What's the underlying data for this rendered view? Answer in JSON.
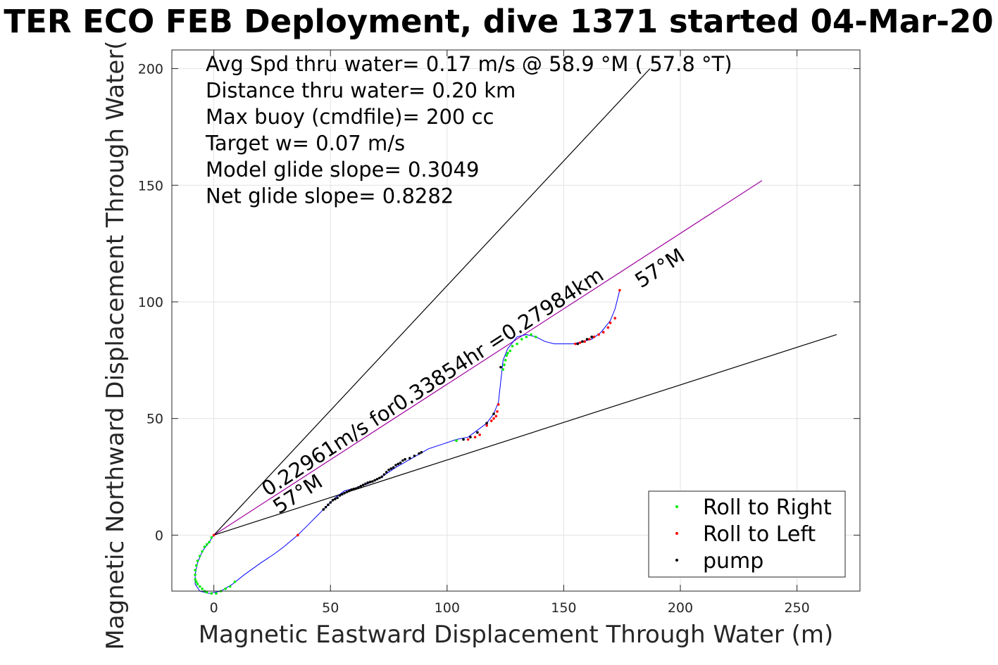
{
  "chart_data": {
    "type": "scatter",
    "title": "TER ECO FEB Deployment, dive 1371 started 04-Mar-20",
    "xlabel": "Magnetic Eastward Displacement Through Water (m)",
    "ylabel": "Magnetic Northward Displacement Through Water(",
    "xlim": [
      -18,
      277
    ],
    "ylim": [
      -24,
      208
    ],
    "xticks": [
      0,
      50,
      100,
      150,
      200,
      250
    ],
    "yticks": [
      0,
      50,
      100,
      150,
      200
    ],
    "grid": true,
    "legend_position": "bottom-right",
    "info_lines": [
      "Avg Spd thru water=  0.17 m/s @  58.9 °M ( 57.8 °T)",
      "Distance thru water=  0.20 km",
      "Max buoy (cmdfile)= 200 cc",
      "Target w= 0.07 m/s",
      "Model glide slope= 0.3049",
      "Net glide slope= 0.8282"
    ],
    "annotations": {
      "segment_label": "0.22961m/s for0.33854hr =0.27984km",
      "heading_label_upper": "57°M",
      "heading_label_lower": "57°M"
    },
    "reference_lines": [
      {
        "name": "upper bound",
        "x": [
          0,
          187
        ],
        "y": [
          0,
          200
        ],
        "color": "#000000"
      },
      {
        "name": "heading line",
        "x": [
          0,
          235
        ],
        "y": [
          0,
          152
        ],
        "color": "#a000a0"
      },
      {
        "name": "lower bound",
        "x": [
          0,
          267
        ],
        "y": [
          0,
          86
        ],
        "color": "#000000"
      }
    ],
    "track": {
      "color": "#0000ff",
      "x": [
        0,
        -2,
        -5,
        -7,
        -8,
        -8,
        -6,
        -2,
        3,
        8,
        13,
        20,
        26,
        30,
        36,
        40,
        44,
        48,
        52,
        56,
        60,
        66,
        72,
        78,
        85,
        92,
        98,
        104,
        109,
        113,
        117,
        120,
        122,
        123,
        124,
        126,
        130,
        134,
        138,
        142,
        146,
        150,
        154,
        158,
        162,
        166,
        170,
        172,
        174
      ],
      "y": [
        0,
        -3,
        -7,
        -12,
        -17,
        -21,
        -24,
        -25,
        -24,
        -21,
        -17,
        -12,
        -8,
        -5,
        0,
        4,
        8,
        12,
        16,
        19,
        20,
        22,
        25,
        29,
        33,
        37,
        39,
        41,
        42,
        45,
        48,
        52,
        57,
        66,
        75,
        80,
        85,
        86,
        85,
        83,
        82,
        82,
        82,
        83,
        84,
        87,
        92,
        97,
        105
      ]
    },
    "series": [
      {
        "name": "Roll to Right",
        "color": "#00ee00",
        "x": [
          -1,
          -2,
          -3,
          -4,
          -5,
          -6,
          -7,
          -7.5,
          -8,
          -8,
          -8,
          -7.5,
          -7,
          -6,
          -5,
          -4,
          -3,
          -1,
          1,
          3,
          5,
          7,
          9,
          104,
          107,
          124,
          124.5,
          125,
          125.5,
          126,
          127,
          128,
          130,
          132,
          134,
          136,
          138
        ],
        "y": [
          -1,
          -3,
          -4,
          -5,
          -7,
          -9,
          -11,
          -13,
          -15,
          -17,
          -19,
          -20,
          -21,
          -22,
          -23,
          -24,
          -24.5,
          -25,
          -25,
          -24,
          -23,
          -22,
          -20,
          40.5,
          41,
          71,
          73,
          75,
          77,
          78,
          79,
          81,
          82,
          84,
          85,
          86,
          85
        ]
      },
      {
        "name": "Roll to Left",
        "color": "#ff0000",
        "x": [
          0,
          36,
          109,
          112,
          114,
          117,
          119,
          120,
          121,
          121.5,
          122,
          155,
          157,
          159,
          161,
          163,
          165,
          167,
          169,
          170,
          172,
          174
        ],
        "y": [
          0,
          0,
          41,
          42,
          43,
          47,
          49,
          50,
          51,
          53,
          56,
          82,
          82.5,
          83,
          84,
          85,
          86,
          87,
          89,
          91,
          93,
          105
        ]
      },
      {
        "name": "pump",
        "color": "#000000",
        "x": [
          47,
          48,
          49,
          50,
          51,
          52,
          53,
          54,
          55,
          56,
          57,
          58,
          59,
          60,
          61,
          62,
          63,
          64,
          65,
          66,
          67,
          68,
          69,
          70,
          71,
          72,
          73,
          74,
          75,
          76,
          77,
          78,
          79,
          80,
          81,
          82,
          84,
          86,
          88,
          89,
          107,
          110,
          113,
          117,
          120,
          123,
          156,
          158,
          160,
          162
        ],
        "y": [
          11,
          12,
          13,
          14,
          15,
          15.5,
          16,
          17,
          17.5,
          18,
          18.5,
          19,
          19.5,
          19.8,
          20,
          20.5,
          21,
          21.5,
          22,
          22.5,
          22.8,
          23,
          23.5,
          24,
          24.5,
          25,
          26,
          27,
          28,
          28.5,
          29,
          30,
          30.5,
          31,
          32,
          32.5,
          33,
          34,
          35,
          35.5,
          41,
          42,
          44,
          48,
          52,
          72,
          82,
          83,
          84,
          85
        ]
      }
    ]
  }
}
